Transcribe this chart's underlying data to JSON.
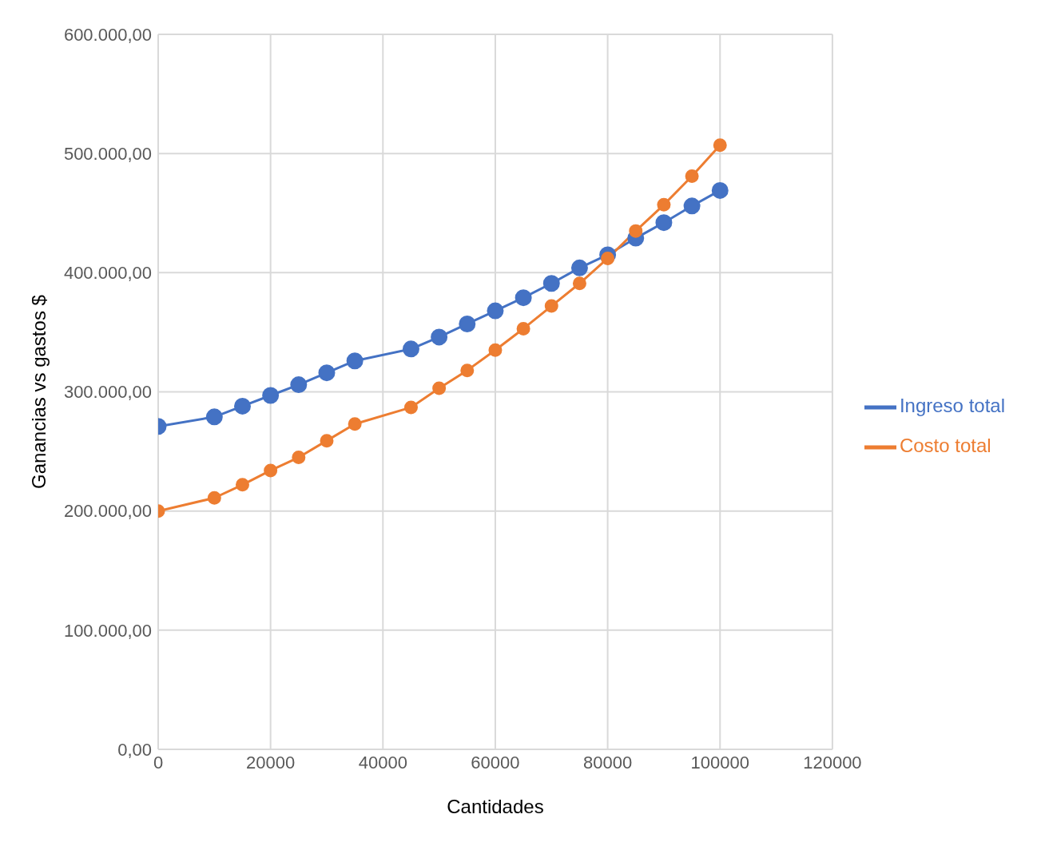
{
  "chart_data": {
    "type": "line",
    "xlabel": "Cantidades",
    "ylabel": "Ganancias vs gastos $",
    "x": [
      0,
      10000,
      15000,
      20000,
      25000,
      30000,
      35000,
      45000,
      50000,
      55000,
      60000,
      65000,
      70000,
      75000,
      80000,
      85000,
      90000,
      95000,
      100000
    ],
    "series": [
      {
        "name": "Ingreso total",
        "color": "#4472c4",
        "values": [
          271000,
          279000,
          288000,
          297000,
          306000,
          316000,
          326000,
          336000,
          346000,
          357000,
          368000,
          379000,
          391000,
          404000,
          415000,
          429000,
          442000,
          456000,
          469000
        ]
      },
      {
        "name": "Costo total",
        "color": "#ed7d31",
        "values": [
          200000,
          211000,
          222000,
          234000,
          245000,
          259000,
          273000,
          287000,
          303000,
          318000,
          335000,
          353000,
          372000,
          391000,
          412000,
          435000,
          457000,
          481000,
          507000
        ]
      }
    ],
    "xlim": [
      0,
      120000
    ],
    "xticks": [
      0,
      20000,
      40000,
      60000,
      80000,
      100000,
      120000
    ],
    "ylim": [
      0,
      600000
    ],
    "yticks": [
      {
        "value": 0,
        "label": "0,00"
      },
      {
        "value": 100000,
        "label": "100.000,00"
      },
      {
        "value": 200000,
        "label": "200.000,00"
      },
      {
        "value": 300000,
        "label": "300.000,00"
      },
      {
        "value": 400000,
        "label": "400.000,00"
      },
      {
        "value": 500000,
        "label": "500.000,00"
      },
      {
        "value": 600000,
        "label": "600.000,00"
      }
    ],
    "grid": true,
    "legend": "right",
    "marker": "circle",
    "line_style": "solid"
  }
}
